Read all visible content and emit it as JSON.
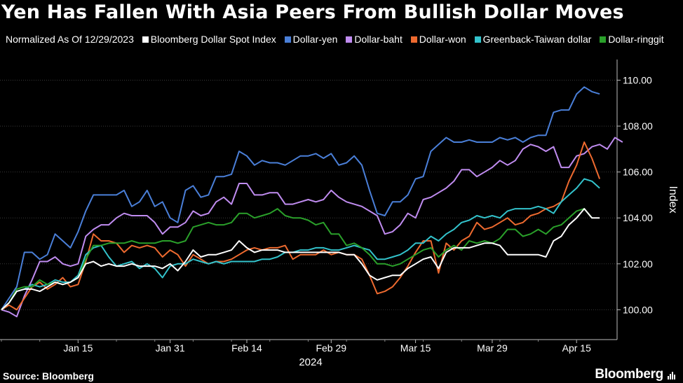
{
  "title": "Yen Has Fallen With Asia Peers From Bullish Dollar Moves",
  "legend_note": "Normalized As Of 12/29/2023",
  "source": "Source: Bloomberg",
  "brand": "Bloomberg",
  "chart_data": {
    "type": "line",
    "title": "Yen Has Fallen With Asia Peers From Bullish Dollar Moves",
    "xlabel": "2024",
    "ylabel": "Index",
    "ylim": [
      98.7,
      110.9
    ],
    "yticks": [
      100,
      102,
      104,
      106,
      108,
      110
    ],
    "ytick_labels": [
      "100.00",
      "102.00",
      "104.00",
      "106.00",
      "108.00",
      "110.00"
    ],
    "xlim": [
      0,
      79
    ],
    "xticks": [
      {
        "pos": 10,
        "label": "Jan 15"
      },
      {
        "pos": 22,
        "label": "Jan 31"
      },
      {
        "pos": 32,
        "label": "Feb 14"
      },
      {
        "pos": 43,
        "label": "Feb 29"
      },
      {
        "pos": 54,
        "label": "Mar 15"
      },
      {
        "pos": 64,
        "label": "Mar 29"
      },
      {
        "pos": 75,
        "label": "Apr 15"
      }
    ],
    "x_note": "x values are trading-day indexes starting 12/29/2023 (0)",
    "series": [
      {
        "name": "Dollar-yen",
        "color": "#4a7fd8",
        "values": [
          100.0,
          100.5,
          101.0,
          102.5,
          102.5,
          102.2,
          102.4,
          103.3,
          103.0,
          102.7,
          103.4,
          104.3,
          105.0,
          105.0,
          105.0,
          105.0,
          105.2,
          104.5,
          104.7,
          105.2,
          104.5,
          104.7,
          104.0,
          103.8,
          105.2,
          105.4,
          104.9,
          105.0,
          105.8,
          105.8,
          105.9,
          106.9,
          106.7,
          106.3,
          106.5,
          106.4,
          106.4,
          106.3,
          106.5,
          106.7,
          106.7,
          106.8,
          106.6,
          106.8,
          106.3,
          106.4,
          106.7,
          106.3,
          105.2,
          104.2,
          104.1,
          104.7,
          104.7,
          105.0,
          105.7,
          105.8,
          106.9,
          107.2,
          107.5,
          107.3,
          107.3,
          107.4,
          107.3,
          107.3,
          107.3,
          107.5,
          107.4,
          107.5,
          107.3,
          107.5,
          107.6,
          107.6,
          108.6,
          108.7,
          108.7,
          109.4,
          109.7,
          109.5,
          109.4
        ]
      },
      {
        "name": "Dollar-baht",
        "color": "#c08cf0",
        "values": [
          100.0,
          99.9,
          99.7,
          100.6,
          101.3,
          102.1,
          102.1,
          102.3,
          102.0,
          101.9,
          102.0,
          103.2,
          103.5,
          103.7,
          103.7,
          104.0,
          104.2,
          104.1,
          104.1,
          104.1,
          103.8,
          103.3,
          103.6,
          103.6,
          103.8,
          104.3,
          104.1,
          104.2,
          104.7,
          104.9,
          104.6,
          105.5,
          105.5,
          105.0,
          105.0,
          105.1,
          105.1,
          104.6,
          104.6,
          104.7,
          104.8,
          104.7,
          104.8,
          105.2,
          104.9,
          104.7,
          104.6,
          104.5,
          104.3,
          104.1,
          103.3,
          103.4,
          103.7,
          104.2,
          104.0,
          104.8,
          104.9,
          105.1,
          105.3,
          105.6,
          106.1,
          106.1,
          105.8,
          106.0,
          106.2,
          106.5,
          106.3,
          106.5,
          107.0,
          107.2,
          107.1,
          106.9,
          107.1,
          106.2,
          106.2,
          106.7,
          106.8,
          107.1,
          107.2,
          107.0,
          107.5,
          107.3
        ]
      },
      {
        "name": "Dollar-won",
        "color": "#ee6a2f",
        "values": [
          100.0,
          100.2,
          100.0,
          100.5,
          101.0,
          101.2,
          100.9,
          101.1,
          101.4,
          101.0,
          101.1,
          102.1,
          103.3,
          103.0,
          103.0,
          102.9,
          102.5,
          102.8,
          102.7,
          102.8,
          102.7,
          102.3,
          102.6,
          102.4,
          101.9,
          102.4,
          102.2,
          102.0,
          102.1,
          102.1,
          102.2,
          102.4,
          102.6,
          102.7,
          102.6,
          102.7,
          102.7,
          102.8,
          102.2,
          102.4,
          102.4,
          102.4,
          102.6,
          102.4,
          102.5,
          102.4,
          102.4,
          102.2,
          101.5,
          100.7,
          100.8,
          101.0,
          101.4,
          101.9,
          102.5,
          103.0,
          103.0,
          101.6,
          102.9,
          102.6,
          103.0,
          103.2,
          103.8,
          103.5,
          103.6,
          103.8,
          104.0,
          103.7,
          103.8,
          104.1,
          104.2,
          104.4,
          104.5,
          104.7,
          105.6,
          106.3,
          107.3,
          106.6,
          105.7
        ]
      },
      {
        "name": "Greenback-Taiwan dollar",
        "color": "#33c3cc",
        "values": [
          100.0,
          100.3,
          100.8,
          100.9,
          101.1,
          101.0,
          101.1,
          101.3,
          101.2,
          101.2,
          101.5,
          102.4,
          102.7,
          102.8,
          102.3,
          101.9,
          102.0,
          102.1,
          101.8,
          102.0,
          101.8,
          101.4,
          101.9,
          102.0,
          102.0,
          102.2,
          102.1,
          102.0,
          102.1,
          102.0,
          102.1,
          102.1,
          102.1,
          102.1,
          102.2,
          102.2,
          102.3,
          102.5,
          102.5,
          102.6,
          102.6,
          102.7,
          102.7,
          102.6,
          102.6,
          102.7,
          102.8,
          102.7,
          102.6,
          102.2,
          102.2,
          102.3,
          102.4,
          102.6,
          102.9,
          102.9,
          103.2,
          103.0,
          103.3,
          103.5,
          103.8,
          103.9,
          104.1,
          104.0,
          104.1,
          104.0,
          104.3,
          104.4,
          104.4,
          104.4,
          104.5,
          104.4,
          104.2,
          104.7,
          105.0,
          105.3,
          105.7,
          105.6,
          105.3
        ]
      },
      {
        "name": "Dollar-ringgit",
        "color": "#2aa02a",
        "values": [
          100.0,
          100.3,
          100.9,
          101.0,
          101.0,
          101.3,
          101.1,
          101.2,
          101.1,
          101.2,
          101.4,
          102.2,
          102.8,
          102.8,
          102.9,
          102.9,
          102.9,
          103.0,
          102.9,
          102.9,
          102.9,
          103.0,
          103.0,
          102.9,
          103.0,
          103.6,
          103.7,
          103.8,
          103.7,
          103.7,
          103.8,
          104.2,
          104.2,
          104.0,
          104.1,
          104.2,
          104.4,
          104.1,
          104.0,
          104.0,
          103.9,
          103.7,
          103.8,
          103.3,
          103.3,
          102.8,
          102.9,
          102.7,
          102.4,
          102.0,
          102.0,
          101.9,
          102.0,
          102.2,
          102.4,
          102.6,
          102.7,
          102.3,
          102.6,
          102.8,
          102.6,
          103.0,
          102.9,
          103.0,
          102.9,
          103.1,
          103.5,
          103.5,
          103.2,
          103.3,
          103.5,
          103.3,
          103.6,
          103.7,
          104.0,
          104.3,
          104.4,
          104.0
        ]
      },
      {
        "name": "Bloomberg Dollar Spot Index",
        "color": "#ffffff",
        "values": [
          100.0,
          100.3,
          100.8,
          100.9,
          100.9,
          100.8,
          101.0,
          101.2,
          101.1,
          101.2,
          101.4,
          102.0,
          102.1,
          101.9,
          102.0,
          101.9,
          101.9,
          102.0,
          101.9,
          101.9,
          101.9,
          101.8,
          102.0,
          101.7,
          102.1,
          102.6,
          102.3,
          102.4,
          102.4,
          102.5,
          102.6,
          103.0,
          102.7,
          102.5,
          102.6,
          102.6,
          102.6,
          102.5,
          102.5,
          102.5,
          102.5,
          102.5,
          102.5,
          102.5,
          102.5,
          102.4,
          102.4,
          102.0,
          101.5,
          101.3,
          101.4,
          101.5,
          101.5,
          101.8,
          102.0,
          102.2,
          102.3,
          101.8,
          102.5,
          102.7,
          102.7,
          102.7,
          102.8,
          102.9,
          102.9,
          102.8,
          102.4,
          102.4,
          102.4,
          102.4,
          102.4,
          102.3,
          103.0,
          103.2,
          103.7,
          104.0,
          104.4,
          104.0,
          104.0
        ]
      }
    ]
  }
}
